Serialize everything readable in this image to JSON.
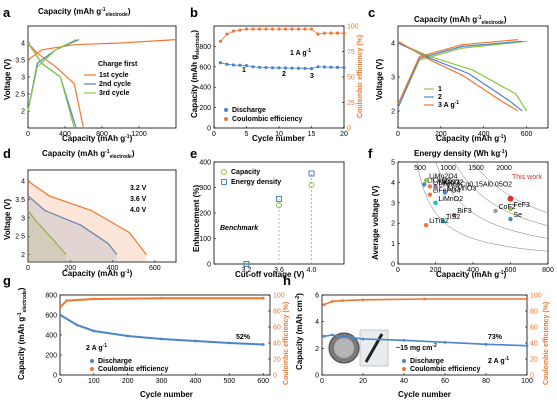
{
  "panels": {
    "a": {
      "label": "a",
      "x_title": "Capacity (mAh g",
      "x_sub": "-1",
      "top_title": "Capacity (mAh g",
      "top_sub": "-1",
      "top_sub2": "electrode",
      "y_title": "Voltage (V)",
      "legend_title": "Charge first",
      "legend": [
        "1st cycle",
        "2nd cycle",
        "3rd cycle"
      ]
    },
    "b": {
      "label": "b",
      "x_title": "Cycle number",
      "y_title": "Capacity (mAh g",
      "y_sub": "electrode",
      "y2_title": "Coulombic efficiency (%)",
      "legend": [
        "Discharge",
        "Coulombic efficiency"
      ],
      "annot": "1 A g",
      "marks": [
        "1",
        "2",
        "3"
      ]
    },
    "c": {
      "label": "c",
      "x_title": "Capacity (mAh g",
      "top_title": "Capacity (mAh g",
      "top_sub": "electrode",
      "y_title": "Voltage (V)",
      "legend": [
        "1",
        "2",
        "3 A g"
      ]
    },
    "d": {
      "label": "d",
      "top_title": "Capacity (mAh g",
      "top_sub": "electrode",
      "y_title": "Voltage (V)",
      "x_title": "Capacity (mAh g",
      "legend": [
        "3.2 V",
        "3.6 V",
        "4.0 V"
      ]
    },
    "e": {
      "label": "e",
      "x_title": "Cut-off voltage (V)",
      "y_title": "Enhancement (%)",
      "legend": [
        "Capacity",
        "Energy density"
      ],
      "annot": "Benchmark"
    },
    "f": {
      "label": "f",
      "top_title": "Energy density (Wh kg",
      "x_title": "Capacity (mAh g",
      "y_title": "Average voltage (V)",
      "this_work": "This work",
      "energy_ticks": [
        "500",
        "1000",
        "1500",
        "2000"
      ],
      "materials": [
        "LiCoO2",
        "LiFePO4",
        "LiMn2O4",
        "LiNi0.8Co0.15Al0.05O2",
        "LiNiO2",
        "LiMnO2",
        "Li2MnO3",
        "LiNiCoO2",
        "FeF3",
        "CoF2",
        "BiF3",
        "TiS2",
        "Se",
        "LiTiS2"
      ]
    },
    "g": {
      "label": "g",
      "x_title": "Cycle number",
      "y_title": "Capacity (mAh g",
      "y_sub": "electrode",
      "y2_title": "Coulombic efficiency (%)",
      "legend": [
        "Discharge",
        "Coulombic efficiency"
      ],
      "rate": "2 A g",
      "retention": "52%"
    },
    "h": {
      "label": "h",
      "x_title": "Cycle number",
      "y_title": "Capacity (mAh cm",
      "y2_title": "Coulombic efficiency (%)",
      "legend": [
        "Discharge",
        "Coulombic efficiency"
      ],
      "rate": "2 A g",
      "retention": "73%",
      "loading": "~15 mg cm"
    }
  },
  "colors": {
    "blue": "#4a86c8",
    "orange": "#ee7733",
    "green": "#8dc63f",
    "gray": "#9a9a9a",
    "red": "#d9342b"
  },
  "chart_data": [
    {
      "panel": "a",
      "type": "line",
      "xlim": [
        0,
        1600
      ],
      "ylim": [
        1.5,
        4.5
      ],
      "series": [
        {
          "name": "1st cycle",
          "charge": [
            [
              0,
              3.5
            ],
            [
              150,
              3.8
            ],
            [
              500,
              3.95
            ],
            [
              1000,
              4.0
            ],
            [
              1600,
              4.1
            ]
          ],
          "discharge": [
            [
              0,
              4.0
            ],
            [
              100,
              3.7
            ],
            [
              300,
              3.3
            ],
            [
              500,
              2.8
            ],
            [
              600,
              1.5
            ]
          ]
        },
        {
          "name": "2nd cycle",
          "charge": [
            [
              0,
              2.0
            ],
            [
              100,
              3.4
            ],
            [
              300,
              3.8
            ],
            [
              550,
              4.1
            ]
          ],
          "discharge": [
            [
              0,
              4.0
            ],
            [
              150,
              3.4
            ],
            [
              350,
              3.0
            ],
            [
              520,
              1.5
            ]
          ]
        },
        {
          "name": "3rd cycle",
          "charge": [
            [
              0,
              2.0
            ],
            [
              100,
              3.3
            ],
            [
              300,
              3.8
            ],
            [
              520,
              4.1
            ]
          ],
          "discharge": [
            [
              0,
              4.0
            ],
            [
              150,
              3.4
            ],
            [
              350,
              3.0
            ],
            [
              500,
              1.5
            ]
          ]
        }
      ]
    },
    {
      "panel": "b",
      "type": "scatter",
      "xlim": [
        0,
        20
      ],
      "ylim": [
        0,
        1000
      ],
      "y2lim": [
        0,
        100
      ],
      "discharge": [
        [
          1,
          640
        ],
        [
          2,
          625
        ],
        [
          3,
          618
        ],
        [
          4,
          615
        ],
        [
          5,
          612
        ],
        [
          6,
          600
        ],
        [
          7,
          595
        ],
        [
          8,
          592
        ],
        [
          9,
          590
        ],
        [
          10,
          590
        ],
        [
          11,
          588
        ],
        [
          12,
          587
        ],
        [
          13,
          586
        ],
        [
          14,
          585
        ],
        [
          15,
          582
        ],
        [
          16,
          600
        ],
        [
          17,
          598
        ],
        [
          18,
          596
        ],
        [
          19,
          594
        ],
        [
          20,
          592
        ]
      ],
      "ce": [
        [
          1,
          85
        ],
        [
          2,
          92
        ],
        [
          3,
          95
        ],
        [
          4,
          96
        ],
        [
          5,
          97
        ],
        [
          6,
          97
        ],
        [
          7,
          97
        ],
        [
          8,
          97
        ],
        [
          9,
          97
        ],
        [
          10,
          97
        ],
        [
          11,
          97
        ],
        [
          12,
          97
        ],
        [
          13,
          97
        ],
        [
          14,
          97
        ],
        [
          15,
          97
        ],
        [
          16,
          92
        ],
        [
          17,
          93
        ],
        [
          18,
          93
        ],
        [
          19,
          93
        ],
        [
          20,
          93
        ]
      ]
    },
    {
      "panel": "c",
      "type": "line",
      "xlim": [
        0,
        700
      ],
      "ylim": [
        1.5,
        4.5
      ],
      "series": [
        {
          "name": "1",
          "charge": [
            [
              0,
              2.1
            ],
            [
              100,
              3.5
            ],
            [
              300,
              3.85
            ],
            [
              600,
              4.05
            ]
          ],
          "discharge": [
            [
              0,
              4.0
            ],
            [
              150,
              3.6
            ],
            [
              350,
              3.2
            ],
            [
              550,
              2.5
            ],
            [
              600,
              2.0
            ]
          ]
        },
        {
          "name": "2",
          "charge": [
            [
              0,
              2.1
            ],
            [
              100,
              3.55
            ],
            [
              300,
              3.9
            ],
            [
              580,
              4.05
            ]
          ],
          "discharge": [
            [
              0,
              4.0
            ],
            [
              150,
              3.55
            ],
            [
              330,
              3.1
            ],
            [
              520,
              2.3
            ],
            [
              580,
              2.0
            ]
          ]
        },
        {
          "name": "3 A g",
          "charge": [
            [
              0,
              2.2
            ],
            [
              100,
              3.6
            ],
            [
              300,
              3.95
            ],
            [
              560,
              4.1
            ]
          ],
          "discharge": [
            [
              0,
              4.05
            ],
            [
              150,
              3.5
            ],
            [
              300,
              3.05
            ],
            [
              480,
              2.3
            ],
            [
              560,
              2.0
            ]
          ]
        }
      ]
    },
    {
      "panel": "d",
      "type": "line",
      "xlim": [
        0,
        700
      ],
      "ylim": [
        1.8,
        4.3
      ],
      "series": [
        {
          "name": "3.2 V",
          "discharge": [
            [
              0,
              3.2
            ],
            [
              40,
              2.9
            ],
            [
              120,
              2.4
            ],
            [
              180,
              2.0
            ]
          ]
        },
        {
          "name": "3.6 V",
          "discharge": [
            [
              0,
              3.6
            ],
            [
              80,
              3.2
            ],
            [
              250,
              2.8
            ],
            [
              380,
              2.3
            ],
            [
              420,
              2.0
            ]
          ]
        },
        {
          "name": "4.0 V",
          "discharge": [
            [
              0,
              4.0
            ],
            [
              100,
              3.6
            ],
            [
              300,
              3.2
            ],
            [
              480,
              2.6
            ],
            [
              560,
              2.0
            ]
          ]
        }
      ]
    },
    {
      "panel": "e",
      "type": "scatter",
      "categories": [
        "3.2",
        "3.6",
        "4.0"
      ],
      "ylim": [
        0,
        400
      ],
      "series": [
        {
          "name": "Capacity",
          "values": [
            0,
            230,
            310
          ]
        },
        {
          "name": "Energy density",
          "values": [
            0,
            255,
            355
          ]
        }
      ]
    },
    {
      "panel": "f",
      "type": "scatter",
      "xlim": [
        0,
        800
      ],
      "ylim": [
        0,
        5
      ],
      "points": [
        [
          140,
          3.9
        ],
        [
          170,
          3.4
        ],
        [
          150,
          4.1
        ],
        [
          200,
          3.7
        ],
        [
          200,
          3.8
        ],
        [
          200,
          3.0
        ],
        [
          250,
          3.5
        ],
        [
          170,
          3.8
        ],
        [
          600,
          2.7
        ],
        [
          520,
          2.6
        ],
        [
          300,
          2.4
        ],
        [
          240,
          2.1
        ],
        [
          600,
          2.2
        ],
        [
          150,
          1.9
        ]
      ],
      "this_work": [
        600,
        3.2
      ]
    },
    {
      "panel": "g",
      "type": "scatter",
      "xlim": [
        0,
        620
      ],
      "ylim": [
        0,
        800
      ],
      "y2lim": [
        0,
        100
      ],
      "discharge": [
        [
          1,
          600
        ],
        [
          50,
          500
        ],
        [
          100,
          440
        ],
        [
          200,
          390
        ],
        [
          300,
          360
        ],
        [
          400,
          340
        ],
        [
          500,
          320
        ],
        [
          600,
          305
        ]
      ],
      "ce": [
        [
          1,
          85
        ],
        [
          20,
          93
        ],
        [
          100,
          95
        ],
        [
          300,
          96
        ],
        [
          600,
          96
        ]
      ]
    },
    {
      "panel": "h",
      "type": "scatter",
      "xlim": [
        0,
        100
      ],
      "ylim": [
        0,
        6
      ],
      "y2lim": [
        0,
        100
      ],
      "discharge": [
        [
          1,
          2.9
        ],
        [
          5,
          3.0
        ],
        [
          10,
          2.9
        ],
        [
          15,
          2.8
        ],
        [
          20,
          2.7
        ],
        [
          40,
          2.6
        ],
        [
          60,
          2.45
        ],
        [
          80,
          2.3
        ],
        [
          100,
          2.2
        ]
      ],
      "ce": [
        [
          1,
          88
        ],
        [
          5,
          92
        ],
        [
          10,
          93
        ],
        [
          20,
          94
        ],
        [
          50,
          95
        ],
        [
          100,
          95
        ]
      ]
    }
  ]
}
